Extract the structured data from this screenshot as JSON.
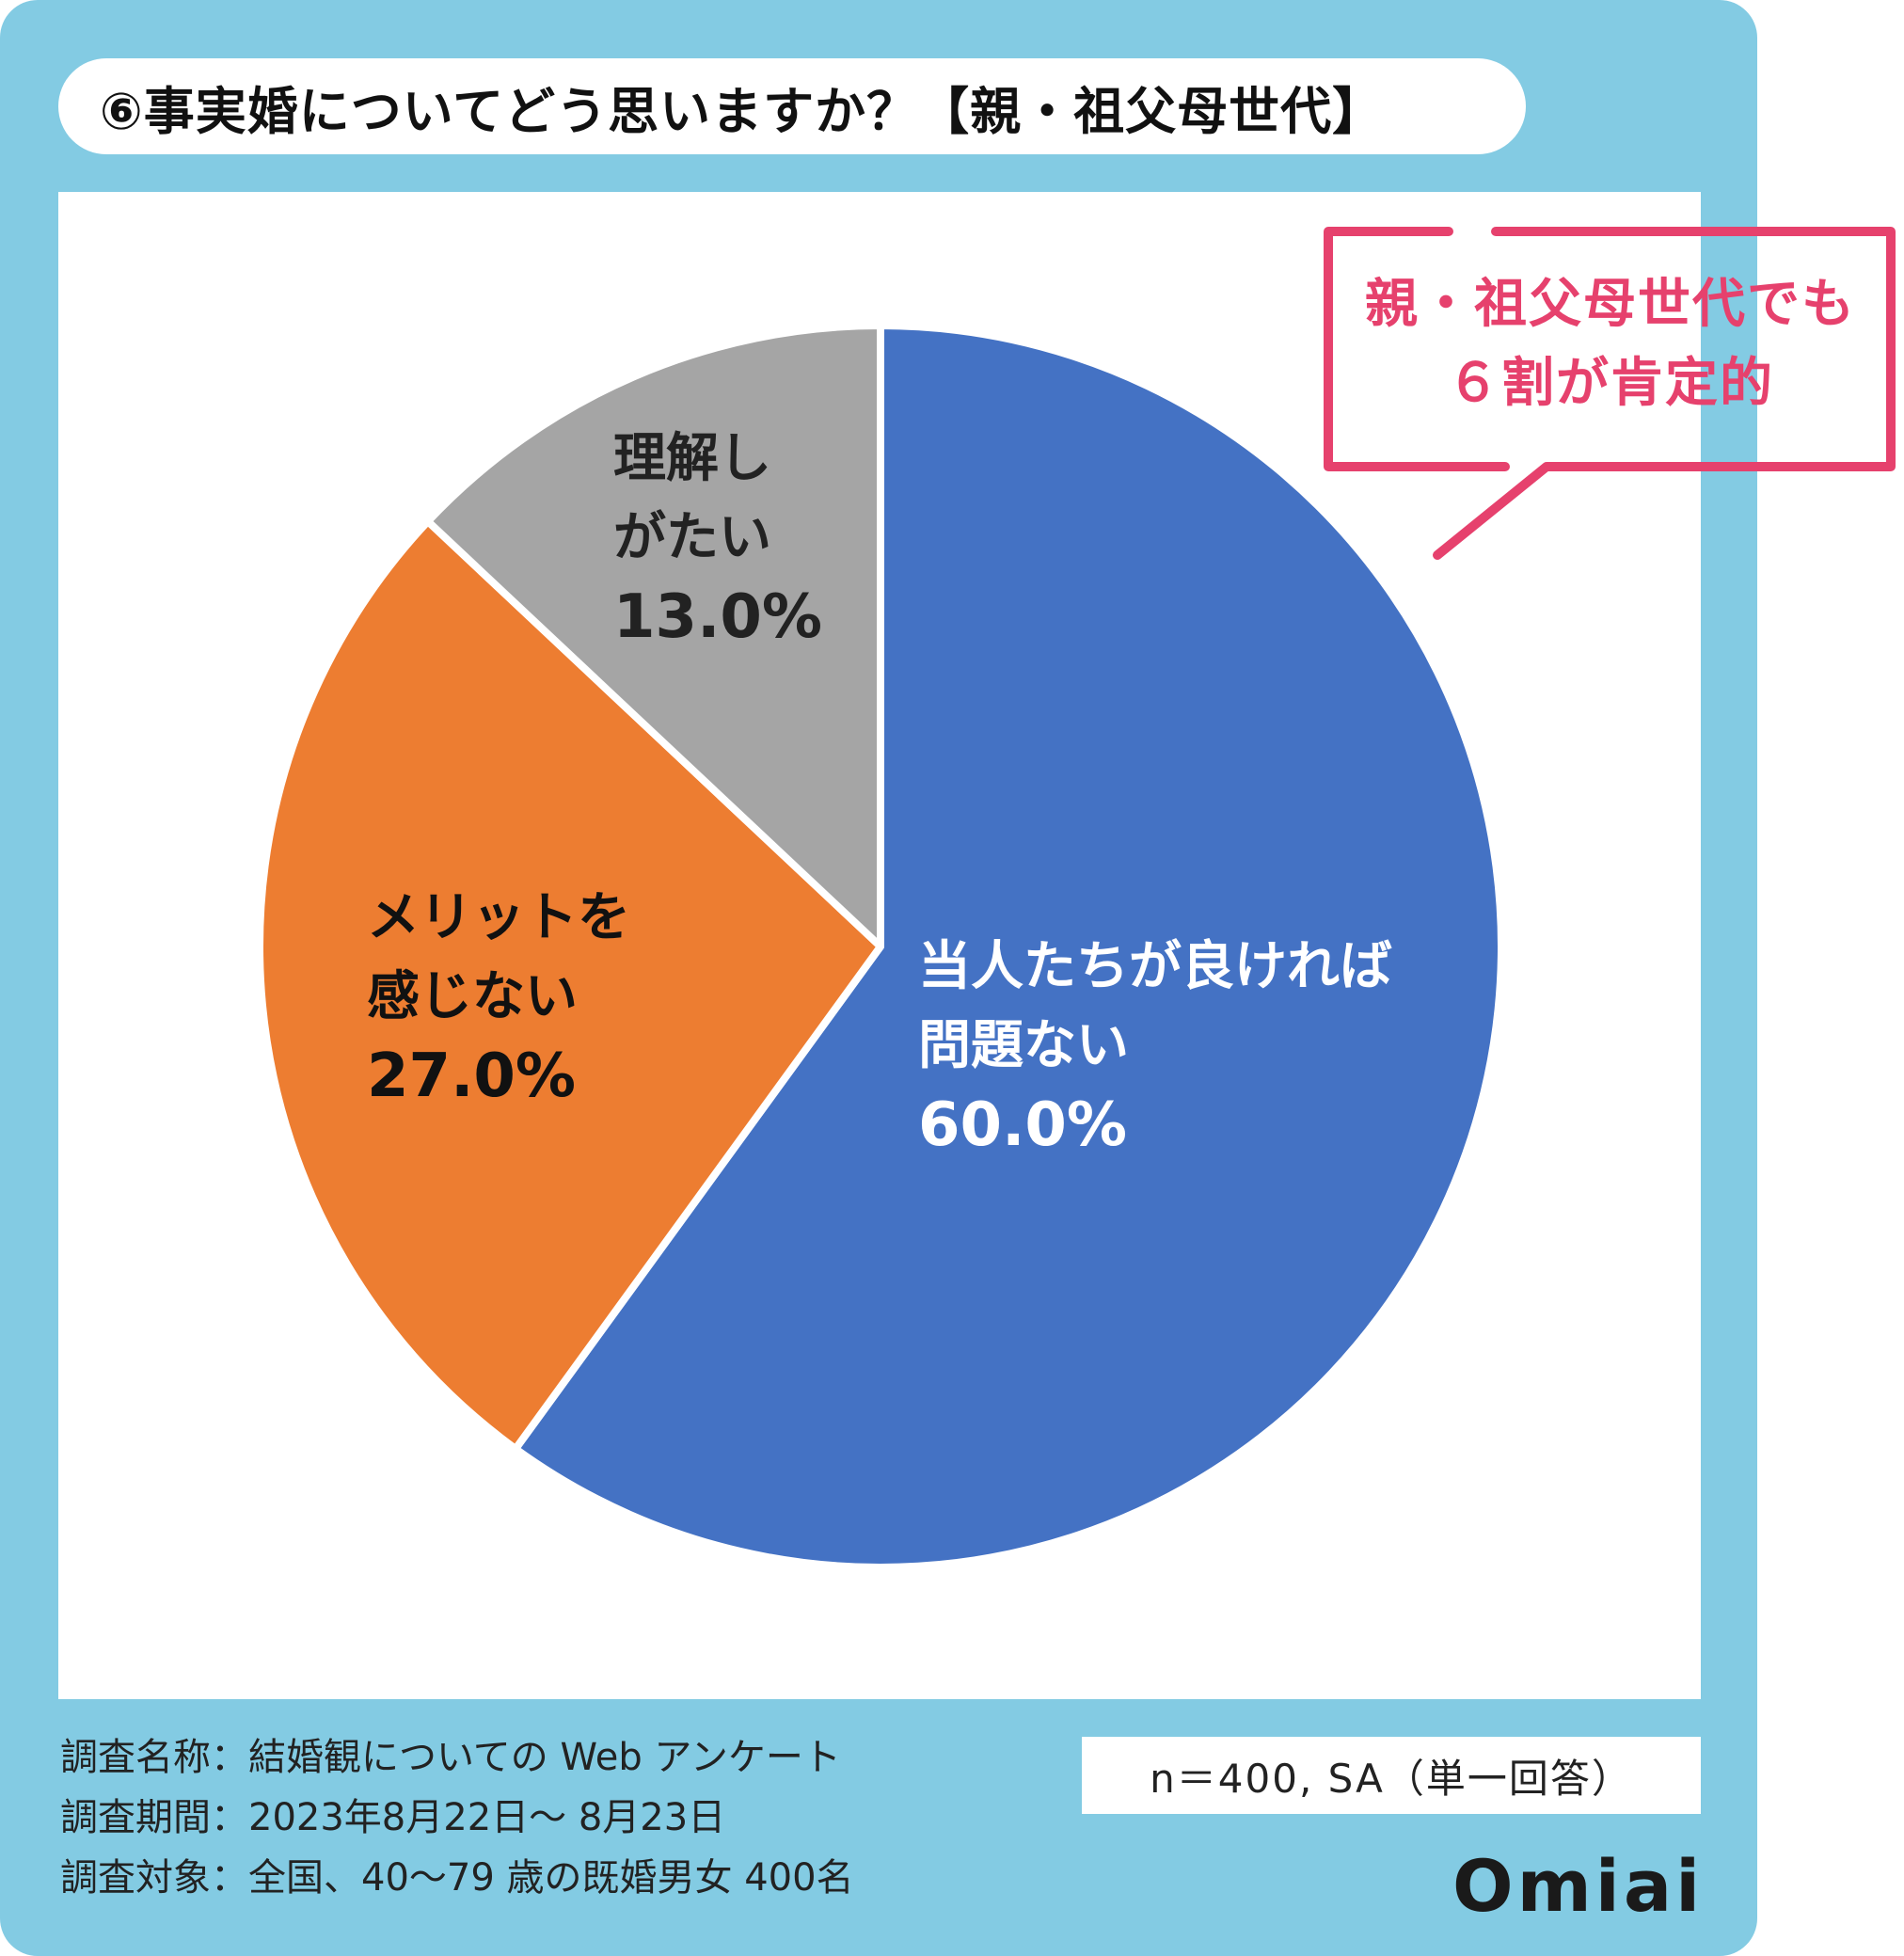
{
  "title": "⑥事実婚についてどう思いますか？【親・祖父母世代】",
  "chart_data": {
    "type": "pie",
    "title": "⑥事実婚についてどう思いますか？【親・祖父母世代】",
    "slices": [
      {
        "label_line1": "当人たちが良ければ",
        "label_line2": "問題ない",
        "value": 60.0,
        "value_label": "60.0%",
        "color": "#4472c4"
      },
      {
        "label_line1": "メリットを",
        "label_line2": "感じない",
        "value": 27.0,
        "value_label": "27.0%",
        "color": "#ed7d31"
      },
      {
        "label_line1": "理解し",
        "label_line2": "がたい",
        "value": 13.0,
        "value_label": "13.0%",
        "color": "#a5a5a5"
      }
    ],
    "start_angle_deg": 0,
    "direction": "clockwise"
  },
  "callout": {
    "line1": "親・祖父母世代でも",
    "line2": "６割が肯定的",
    "color": "#e6416d"
  },
  "footer": {
    "survey_name": "調査名称：結婚観についての Web アンケート",
    "survey_period": "調査期間：2023年8月22日～ 8月23日",
    "survey_target": "調査対象：全国、40～79 歳の既婚男女 400名",
    "sample": "n＝400, SA（単一回答）"
  },
  "logo": "Omiai",
  "colors": {
    "panel": "#83cbe3",
    "background": "#ffffff",
    "text": "#111111"
  }
}
